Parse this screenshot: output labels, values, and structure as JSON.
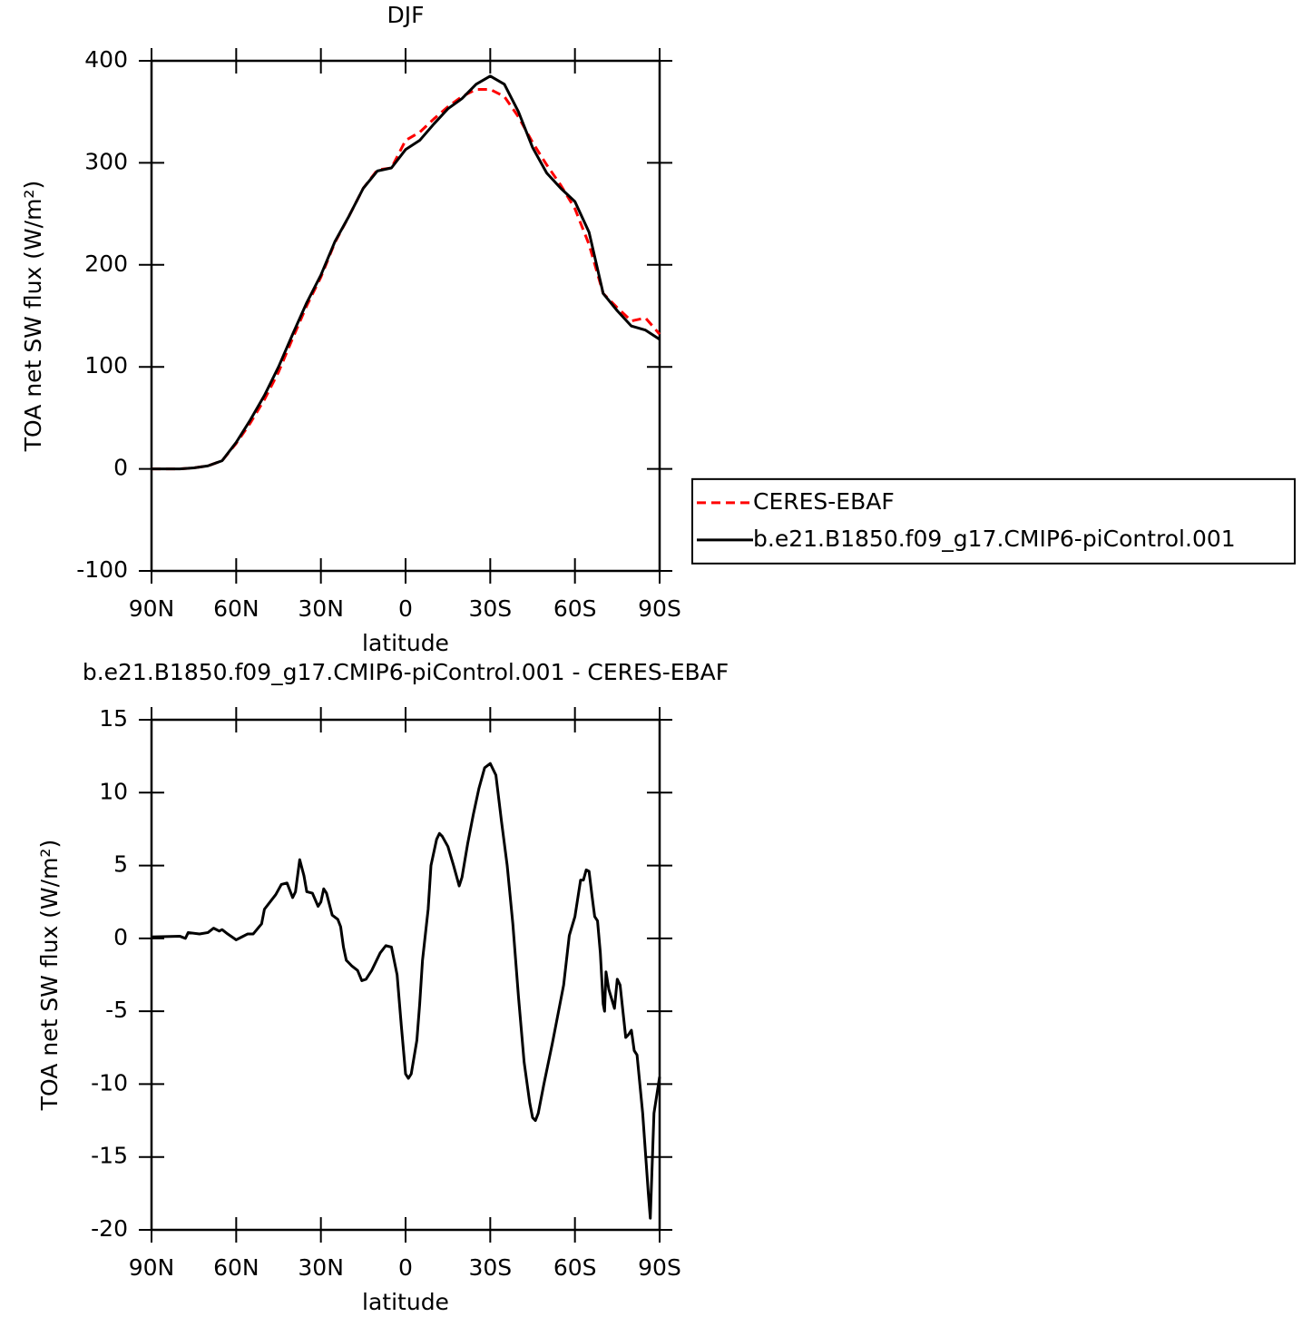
{
  "chart_data": [
    {
      "type": "line",
      "title": "DJF",
      "xlabel": "latitude",
      "ylabel": "TOA net SW flux (W/m²)",
      "x": [
        90,
        85,
        80,
        75,
        70,
        65,
        60,
        55,
        50,
        45,
        40,
        35,
        30,
        25,
        20,
        15,
        10,
        5,
        0,
        -5,
        -10,
        -15,
        -20,
        -25,
        -30,
        -35,
        -40,
        -45,
        -50,
        -55,
        -60,
        -65,
        -70,
        -75,
        -80,
        -85,
        -90
      ],
      "xlim": [
        90,
        -90
      ],
      "xticks": [
        {
          "value": 90,
          "label": "90N"
        },
        {
          "value": 60,
          "label": "60N"
        },
        {
          "value": 30,
          "label": "30N"
        },
        0,
        {
          "value": -30,
          "label": "30S"
        },
        {
          "value": -60,
          "label": "60S"
        },
        {
          "value": -90,
          "label": "90S"
        }
      ],
      "ylim": [
        -100,
        400
      ],
      "yticks": [
        -100,
        0,
        100,
        200,
        300,
        400
      ],
      "legend": "right",
      "series": [
        {
          "name": "CERES-EBAF",
          "color": "#ff0000",
          "dash": "dashed",
          "values": [
            0,
            0,
            0,
            1,
            3,
            8,
            25,
            45,
            68,
            95,
            128,
            160,
            188,
            222,
            248,
            275,
            293,
            295,
            322,
            330,
            343,
            355,
            365,
            372,
            372,
            365,
            345,
            320,
            298,
            278,
            255,
            220,
            172,
            158,
            145,
            148,
            132
          ]
        },
        {
          "name": "b.e21.B1850.f09_g17.CMIP6-piControl.001",
          "color": "#000000",
          "dash": "solid",
          "values": [
            0,
            0,
            0,
            1,
            3,
            8,
            26,
            48,
            72,
            100,
            132,
            163,
            190,
            223,
            248,
            275,
            292,
            295,
            313,
            322,
            338,
            353,
            363,
            377,
            385,
            377,
            350,
            315,
            290,
            275,
            262,
            232,
            172,
            155,
            140,
            136,
            127
          ]
        }
      ]
    },
    {
      "type": "line",
      "title": "b.e21.B1850.f09_g17.CMIP6-piControl.001 - CERES-EBAF",
      "xlabel": "latitude",
      "ylabel": "TOA net SW flux (W/m²)",
      "x": [
        90,
        80,
        78,
        77,
        73,
        70,
        68,
        66,
        65,
        63,
        60,
        58,
        56,
        54,
        51,
        50,
        48,
        46,
        44,
        42,
        40,
        39,
        37.5,
        36,
        35,
        33,
        31,
        30,
        29,
        28,
        26,
        24,
        23,
        22,
        21,
        19,
        17,
        15.5,
        14,
        12,
        9,
        7,
        5,
        3,
        1.5,
        0,
        -1,
        -2,
        -4,
        -5,
        -6,
        -8,
        -9,
        -11,
        -12,
        -13,
        -15,
        -17,
        -19,
        -20,
        -22,
        -24,
        -26,
        -28,
        -30,
        -32,
        -34,
        -36,
        -38,
        -40,
        -42,
        -44,
        -45,
        -46,
        -47,
        -49,
        -52,
        -56,
        -58,
        -60,
        -62,
        -63,
        -64,
        -65,
        -66,
        -67,
        -68,
        -69,
        -70,
        -70.5,
        -71,
        -72,
        -74,
        -75,
        -76,
        -78,
        -79,
        -80,
        -81,
        -82,
        -84,
        -86,
        -86.7,
        -88,
        -90
      ],
      "xlim": [
        90,
        -90
      ],
      "xticks": [
        {
          "value": 90,
          "label": "90N"
        },
        {
          "value": 60,
          "label": "60N"
        },
        {
          "value": 30,
          "label": "30N"
        },
        0,
        {
          "value": -30,
          "label": "30S"
        },
        {
          "value": -60,
          "label": "60S"
        },
        {
          "value": -90,
          "label": "90S"
        }
      ],
      "ylim": [
        -20,
        15
      ],
      "yticks": [
        -20,
        -15,
        -10,
        -5,
        0,
        5,
        10,
        15
      ],
      "series": [
        {
          "color": "#000000",
          "dash": "solid",
          "values": [
            0.1,
            0.15,
            0,
            0.4,
            0.3,
            0.4,
            0.7,
            0.5,
            0.6,
            0.3,
            -0.1,
            0.1,
            0.3,
            0.3,
            1.0,
            2.0,
            2.5,
            3.0,
            3.7,
            3.8,
            2.8,
            3.2,
            5.4,
            4.3,
            3.2,
            3.1,
            2.2,
            2.5,
            3.4,
            3.1,
            1.6,
            1.3,
            0.8,
            -0.6,
            -1.5,
            -1.9,
            -2.2,
            -2.9,
            -2.8,
            -2.2,
            -1.0,
            -0.5,
            -0.6,
            -2.5,
            -6,
            -9.3,
            -9.6,
            -9.3,
            -7,
            -4.5,
            -1.5,
            2,
            5,
            6.8,
            7.2,
            7.0,
            6.3,
            5.0,
            3.6,
            4.2,
            6.5,
            8.5,
            10.3,
            11.7,
            12.0,
            11.2,
            8,
            5,
            1,
            -4,
            -8.5,
            -11.3,
            -12.3,
            -12.5,
            -12,
            -10,
            -7.2,
            -3.2,
            0.2,
            1.5,
            4.0,
            4.0,
            4.7,
            4.6,
            3.0,
            1.5,
            1.2,
            -1,
            -4.5,
            -5.0,
            -2.3,
            -3.5,
            -4.8,
            -2.8,
            -3.2,
            -6.8,
            -6.6,
            -6.3,
            -7.7,
            -8,
            -12,
            -17.5,
            -19.2,
            -12,
            -9.5
          ]
        }
      ]
    }
  ]
}
